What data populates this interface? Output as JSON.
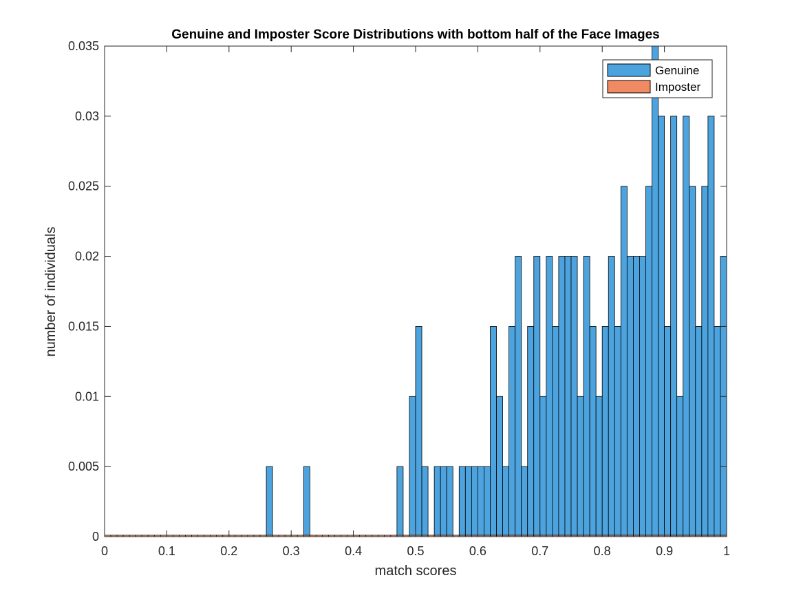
{
  "chart_data": {
    "type": "bar",
    "title": "Genuine and Imposter Score Distributions with bottom half of the Face Images",
    "xlabel": "match scores",
    "ylabel": "number of individuals",
    "xlim": [
      0,
      1
    ],
    "ylim": [
      0,
      0.035
    ],
    "xticks": [
      "0",
      "0.1",
      "0.2",
      "0.3",
      "0.4",
      "0.5",
      "0.6",
      "0.7",
      "0.8",
      "0.9",
      "1"
    ],
    "yticks": [
      "0",
      "0.005",
      "0.01",
      "0.015",
      "0.02",
      "0.025",
      "0.03",
      "0.035"
    ],
    "legend_position": "top-right",
    "bin_width": 0.01,
    "series": [
      {
        "name": "Genuine",
        "color": "#4da3de",
        "values": [
          0,
          0,
          0,
          0,
          0,
          0,
          0,
          0,
          0,
          0,
          0,
          0,
          0,
          0,
          0,
          0,
          0,
          0,
          0,
          0,
          0,
          0,
          0,
          0,
          0,
          0,
          0.005,
          0,
          0,
          0,
          0,
          0,
          0.005,
          0,
          0,
          0,
          0,
          0,
          0,
          0,
          0,
          0,
          0,
          0,
          0,
          0,
          0,
          0.005,
          0,
          0.01,
          0.015,
          0.005,
          0,
          0.005,
          0.005,
          0.005,
          0,
          0.005,
          0.005,
          0.005,
          0.005,
          0.005,
          0.015,
          0.01,
          0.005,
          0.015,
          0.02,
          0.005,
          0.015,
          0.02,
          0.01,
          0.02,
          0.015,
          0.02,
          0.02,
          0.02,
          0.01,
          0.02,
          0.015,
          0.01,
          0.015,
          0.02,
          0.015,
          0.025,
          0.02,
          0.02,
          0.02,
          0.025,
          0.035,
          0.03,
          0.015,
          0.03,
          0.01,
          0.03,
          0.025,
          0.015,
          0.025,
          0.03,
          0.015,
          0.02
        ]
      },
      {
        "name": "Imposter",
        "color": "#f08a62",
        "values": [
          0.0001,
          0.0001,
          0.0001,
          0.0001,
          0.0001,
          0.0001,
          0.0001,
          0.0001,
          0.0001,
          0.0001,
          0.0001,
          0.0001,
          0.0001,
          0.0001,
          0.0001,
          0.0001,
          0.0001,
          0.0001,
          0.0001,
          0.0001,
          0.0001,
          0.0001,
          0.0001,
          0.0001,
          0.0001,
          0.0001,
          0.0001,
          0.0001,
          0.0001,
          0.0001,
          0.0001,
          0.0001,
          0.0001,
          0.0001,
          0.0001,
          0.0001,
          0.0001,
          0.0001,
          0.0001,
          0.0001,
          0.0001,
          0.0001,
          0.0001,
          0.0001,
          0.0001,
          0.0001,
          0.0001,
          0.0001,
          0.0001,
          0.0001,
          0.0001,
          0.0001,
          0.0001,
          0.0001,
          0.0001,
          0.0001,
          0.0001,
          0.0001,
          0.0001,
          0.0001,
          0.0001,
          0.0001,
          0.0001,
          0.0001,
          0.0001,
          0.0001,
          0.0001,
          0.0001,
          0.0001,
          0.0001,
          0.0001,
          0.0001,
          0.0001,
          0.0001,
          0.0001,
          0.0001,
          0.0001,
          0.0001,
          0.0001,
          0.0001,
          0.0001,
          0.0001,
          0.0001,
          0.0001,
          0.0001,
          0.0001,
          0.0001,
          0.0001,
          0.0001,
          0.0001,
          0.0001,
          0.0001,
          0.0001,
          0.0001,
          0.0001,
          0.0001,
          0.0001,
          0.0001,
          0.0001,
          0.0001
        ]
      }
    ]
  }
}
